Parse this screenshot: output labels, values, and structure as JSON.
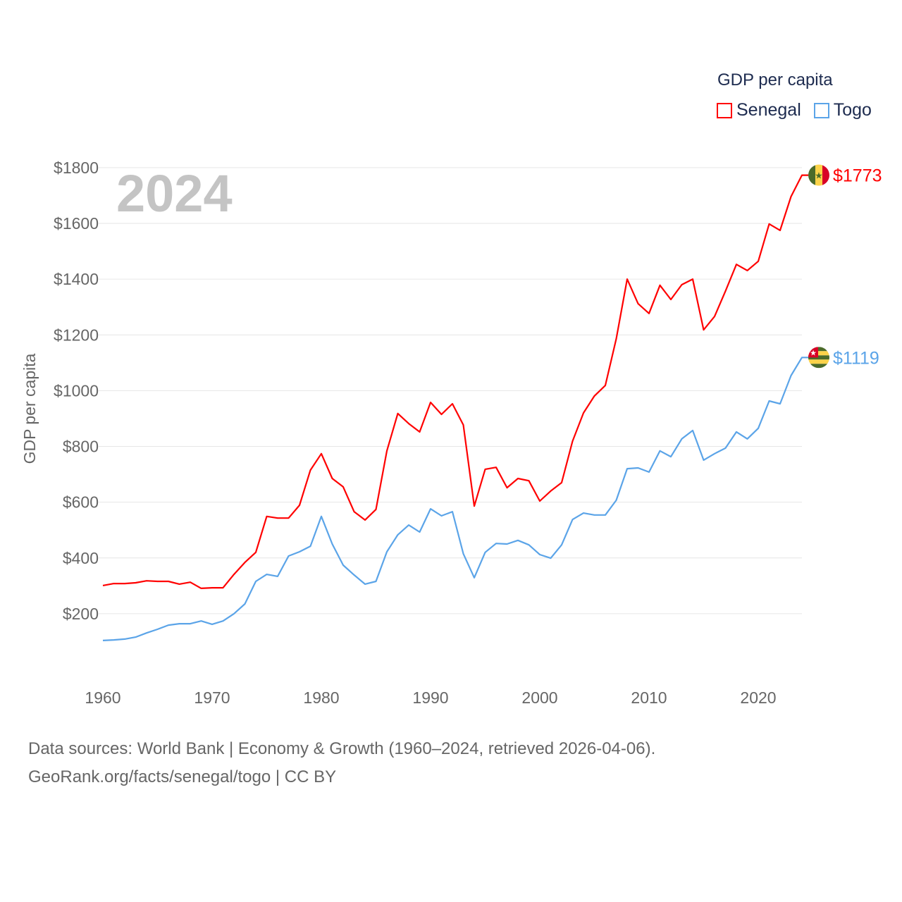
{
  "chart_data": {
    "type": "line",
    "title": "2024",
    "ylabel": "GDP per capita",
    "xlabel": "",
    "ylim": [
      0,
      1850
    ],
    "xlim": [
      1960,
      2024
    ],
    "y_ticks": [
      200,
      400,
      600,
      800,
      1000,
      1200,
      1400,
      1600,
      1800
    ],
    "y_tick_labels": [
      "$200",
      "$400",
      "$600",
      "$800",
      "$1000",
      "$1200",
      "$1400",
      "$1600",
      "$1800"
    ],
    "x_ticks": [
      1960,
      1970,
      1980,
      1990,
      2000,
      2010,
      2020
    ],
    "x_tick_labels": [
      "1960",
      "1970",
      "1980",
      "1990",
      "2000",
      "2010",
      "2020"
    ],
    "grid": true,
    "legend": {
      "title": "GDP per capita",
      "placement": "top-right"
    },
    "x": [
      1960,
      1961,
      1962,
      1963,
      1964,
      1965,
      1966,
      1967,
      1968,
      1969,
      1970,
      1971,
      1972,
      1973,
      1974,
      1975,
      1976,
      1977,
      1978,
      1979,
      1980,
      1981,
      1982,
      1983,
      1984,
      1985,
      1986,
      1987,
      1988,
      1989,
      1990,
      1991,
      1992,
      1993,
      1994,
      1995,
      1996,
      1997,
      1998,
      1999,
      2000,
      2001,
      2002,
      2003,
      2004,
      2005,
      2006,
      2007,
      2008,
      2009,
      2010,
      2011,
      2012,
      2013,
      2014,
      2015,
      2016,
      2017,
      2018,
      2019,
      2020,
      2021,
      2022,
      2023,
      2024
    ],
    "series": [
      {
        "name": "Senegal",
        "color": "#ff0000",
        "end_label": "$1773",
        "flag": "senegal-flag",
        "values": [
          301,
          308,
          308,
          311,
          318,
          316,
          316,
          306,
          313,
          291,
          293,
          293,
          341,
          384,
          420,
          549,
          543,
          543,
          589,
          715,
          774,
          685,
          655,
          566,
          536,
          574,
          784,
          918,
          882,
          852,
          958,
          915,
          953,
          877,
          586,
          718,
          725,
          652,
          685,
          677,
          604,
          640,
          670,
          819,
          920,
          981,
          1019,
          1186,
          1400,
          1312,
          1277,
          1378,
          1327,
          1380,
          1400,
          1218,
          1266,
          1357,
          1453,
          1431,
          1464,
          1598,
          1575,
          1696,
          1773
        ]
      },
      {
        "name": "Togo",
        "color": "#5ba4e8",
        "end_label": "$1119",
        "flag": "togo-flag",
        "values": [
          104,
          106,
          109,
          116,
          131,
          144,
          159,
          164,
          164,
          174,
          162,
          174,
          200,
          235,
          316,
          341,
          334,
          407,
          422,
          442,
          549,
          450,
          374,
          339,
          306,
          316,
          422,
          483,
          518,
          493,
          576,
          551,
          566,
          415,
          329,
          420,
          452,
          450,
          463,
          447,
          412,
          399,
          447,
          538,
          561,
          554,
          554,
          607,
          720,
          723,
          708,
          784,
          763,
          827,
          857,
          751,
          774,
          794,
          852,
          827,
          865,
          963,
          953,
          1054,
          1119
        ]
      }
    ]
  },
  "footer": {
    "line1": "Data sources: World Bank | Economy & Growth (1960–2024, retrieved 2026-04-06).",
    "line2": "GeoRank.org/facts/senegal/togo | CC BY"
  }
}
